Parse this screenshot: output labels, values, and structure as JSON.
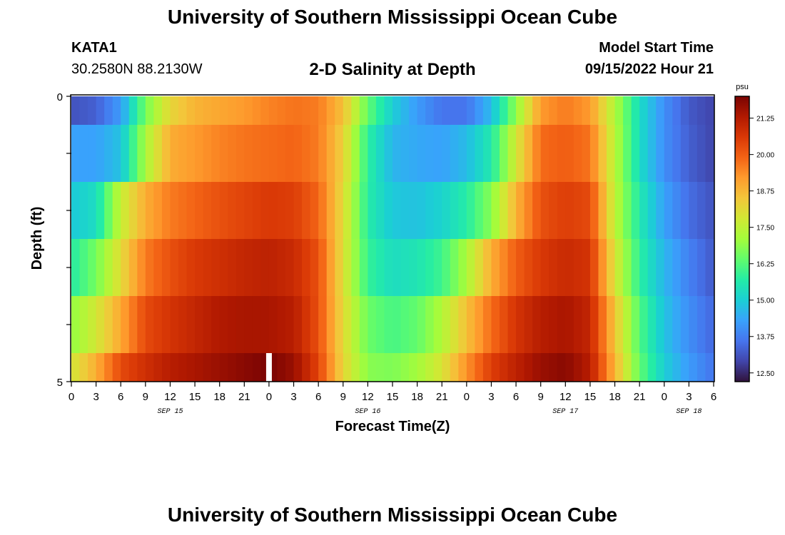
{
  "header": {
    "title": "University of Southern Mississippi Ocean Cube",
    "station_id": "KATA1",
    "station_coords": "30.2580N  88.2130W",
    "chart_title": "2-D Salinity at Depth",
    "model_start_label": "Model Start Time",
    "model_start_value": "09/15/2022 Hour 21"
  },
  "footer": {
    "title": "University of Southern Mississippi Ocean Cube"
  },
  "chart_data": {
    "type": "heatmap",
    "title": "2-D Salinity at Depth",
    "xlabel": "Forecast Time(Z)",
    "ylabel": "Depth (ft)",
    "x_range_hours": [
      0,
      78
    ],
    "x_start": "SEP 15 00Z",
    "xticks": [
      {
        "h": 0,
        "label": "0"
      },
      {
        "h": 3,
        "label": "3"
      },
      {
        "h": 6,
        "label": "6"
      },
      {
        "h": 9,
        "label": "9"
      },
      {
        "h": 12,
        "label": "12"
      },
      {
        "h": 15,
        "label": "15"
      },
      {
        "h": 18,
        "label": "18"
      },
      {
        "h": 21,
        "label": "21"
      },
      {
        "h": 24,
        "label": "0"
      },
      {
        "h": 27,
        "label": "3"
      },
      {
        "h": 30,
        "label": "6"
      },
      {
        "h": 33,
        "label": "9"
      },
      {
        "h": 36,
        "label": "12"
      },
      {
        "h": 39,
        "label": "15"
      },
      {
        "h": 42,
        "label": "18"
      },
      {
        "h": 45,
        "label": "21"
      },
      {
        "h": 48,
        "label": "0"
      },
      {
        "h": 51,
        "label": "3"
      },
      {
        "h": 54,
        "label": "6"
      },
      {
        "h": 57,
        "label": "9"
      },
      {
        "h": 60,
        "label": "12"
      },
      {
        "h": 63,
        "label": "15"
      },
      {
        "h": 66,
        "label": "18"
      },
      {
        "h": 69,
        "label": "21"
      },
      {
        "h": 72,
        "label": "0"
      },
      {
        "h": 75,
        "label": "3"
      },
      {
        "h": 78,
        "label": "6"
      }
    ],
    "date_labels": [
      {
        "h": 12,
        "label": "SEP 15"
      },
      {
        "h": 36,
        "label": "SEP 16"
      },
      {
        "h": 60,
        "label": "SEP 17"
      },
      {
        "h": 75,
        "label": "SEP 18"
      }
    ],
    "y_range_ft": [
      0,
      5
    ],
    "yticks": [
      {
        "v": 0,
        "label": "0"
      },
      {
        "v": 1,
        "label": ""
      },
      {
        "v": 2,
        "label": ""
      },
      {
        "v": 3,
        "label": ""
      },
      {
        "v": 4,
        "label": ""
      },
      {
        "v": 5,
        "label": "5"
      }
    ],
    "depth_layers_ft": [
      [
        0,
        0.5
      ],
      [
        0.5,
        1.5
      ],
      [
        1.5,
        2.5
      ],
      [
        2.5,
        3.5
      ],
      [
        3.5,
        4.5
      ],
      [
        4.5,
        5
      ]
    ],
    "time_hours": [
      0,
      3,
      6,
      9,
      12,
      15,
      18,
      21,
      24,
      27,
      30,
      33,
      36,
      39,
      42,
      45,
      48,
      51,
      54,
      57,
      60,
      63,
      66,
      69,
      72,
      75,
      78
    ],
    "values_psu": [
      [
        13.1,
        13.3,
        14.2,
        16.6,
        18.2,
        18.8,
        19.0,
        19.2,
        19.5,
        19.7,
        19.6,
        18.6,
        16.4,
        15.0,
        14.2,
        13.6,
        13.6,
        14.7,
        16.9,
        19.2,
        19.6,
        19.2,
        17.3,
        15.3,
        14.0,
        13.2,
        12.9
      ],
      [
        14.3,
        14.3,
        14.8,
        17.2,
        18.9,
        19.2,
        19.5,
        19.7,
        19.8,
        19.9,
        19.6,
        18.3,
        15.8,
        14.6,
        14.4,
        14.3,
        14.7,
        15.6,
        17.8,
        19.8,
        20.0,
        19.7,
        17.4,
        15.3,
        14.0,
        13.3,
        12.9
      ],
      [
        14.9,
        15.3,
        17.6,
        18.9,
        19.6,
        19.9,
        20.2,
        20.4,
        20.6,
        20.5,
        19.9,
        18.1,
        15.7,
        14.9,
        14.8,
        15.1,
        15.7,
        16.8,
        18.8,
        20.2,
        20.5,
        20.3,
        17.5,
        15.6,
        14.3,
        13.5,
        13.1
      ],
      [
        15.7,
        16.6,
        18.1,
        19.6,
        20.2,
        20.6,
        20.8,
        21.0,
        21.1,
        20.9,
        20.2,
        18.0,
        15.9,
        15.3,
        15.5,
        16.0,
        17.2,
        18.9,
        20.0,
        20.6,
        20.9,
        20.7,
        17.9,
        15.8,
        14.6,
        13.8,
        13.2
      ],
      [
        16.9,
        17.8,
        19.0,
        20.3,
        20.7,
        21.0,
        21.3,
        21.4,
        21.4,
        21.2,
        20.2,
        18.1,
        16.5,
        16.1,
        16.4,
        17.3,
        18.6,
        19.8,
        20.7,
        21.2,
        21.4,
        21.0,
        18.5,
        16.2,
        14.8,
        14.0,
        13.4
      ],
      [
        17.8,
        18.9,
        20.3,
        20.8,
        21.2,
        21.4,
        21.6,
        21.8,
        22.0,
        21.6,
        20.4,
        18.2,
        16.8,
        16.7,
        17.1,
        17.9,
        19.3,
        20.5,
        21.1,
        21.6,
        21.8,
        21.2,
        18.8,
        16.4,
        15.0,
        14.2,
        13.6
      ]
    ],
    "missing_marker": {
      "depth_ft": [
        4.5,
        5
      ],
      "hour": 24
    },
    "colorbar": {
      "unit": "psu",
      "range": [
        12.2,
        22.0
      ],
      "ticks": [
        "21.25",
        "20.00",
        "18.75",
        "17.50",
        "16.25",
        "15.00",
        "13.75",
        "12.50"
      ]
    }
  },
  "colors": {
    "scale": [
      "#30123b",
      "#4145ab",
      "#4675ed",
      "#39a2fc",
      "#1bcfd4",
      "#24eca6",
      "#61fc6c",
      "#a4fc3b",
      "#d1e834",
      "#f3c63a",
      "#fe9b2d",
      "#f36315",
      "#d93806",
      "#b11901",
      "#7a0403"
    ],
    "missing": "#ffffff"
  }
}
